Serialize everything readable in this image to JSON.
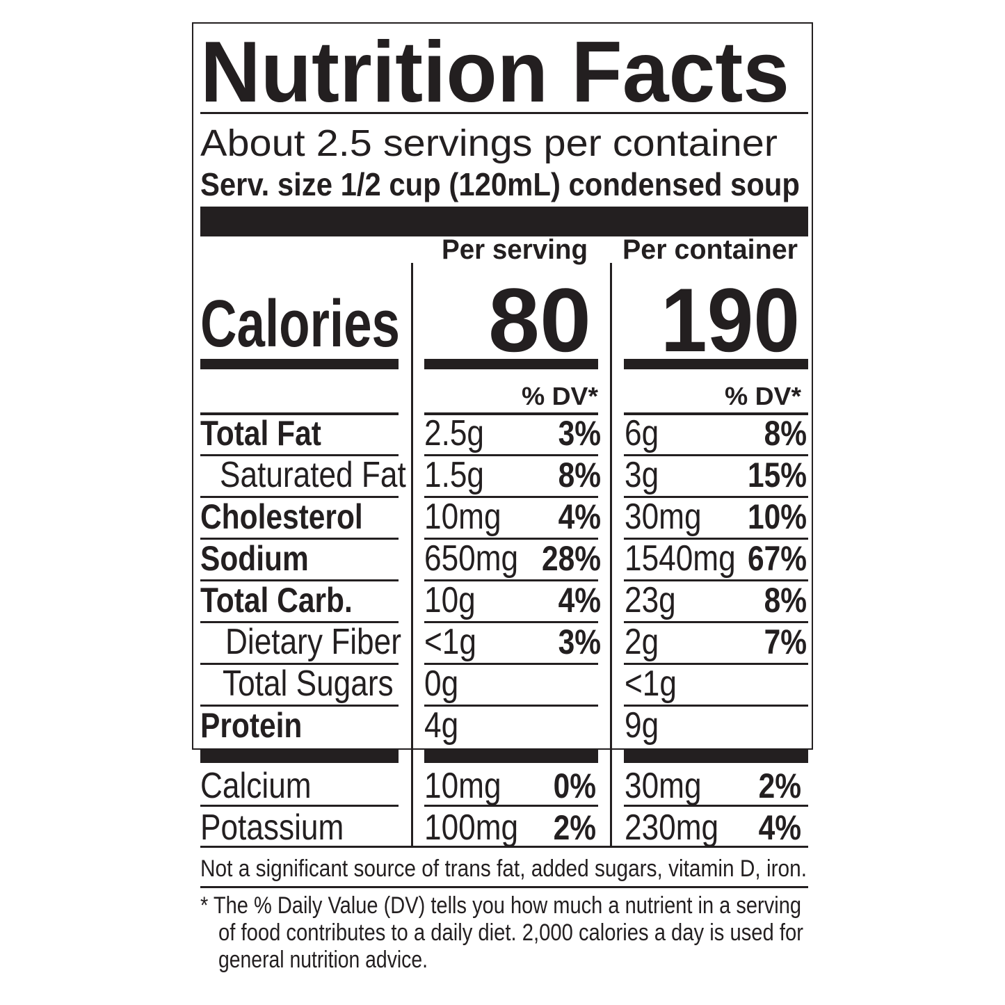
{
  "title": "Nutrition Facts",
  "servings_per_container": "About 2.5 servings per container",
  "serving_size": "Serv. size 1/2 cup (120mL) condensed soup",
  "columns": {
    "per_serving": "Per serving",
    "per_container": "Per container",
    "dv_header": "% DV*"
  },
  "calories": {
    "label": "Calories",
    "per_serving": "80",
    "per_container": "190"
  },
  "nutrients": [
    {
      "label": "Total Fat",
      "bold": true,
      "serving_amount": "2.5g",
      "serving_dv": "3%",
      "container_amount": "6g",
      "container_dv": "8%"
    },
    {
      "label": "Saturated Fat",
      "bold": false,
      "serving_amount": "1.5g",
      "serving_dv": "8%",
      "container_amount": "3g",
      "container_dv": "15%"
    },
    {
      "label": "Cholesterol",
      "bold": true,
      "serving_amount": "10mg",
      "serving_dv": "4%",
      "container_amount": "30mg",
      "container_dv": "10%"
    },
    {
      "label": "Sodium",
      "bold": true,
      "serving_amount": "650mg",
      "serving_dv": "28%",
      "container_amount": "1540mg",
      "container_dv": "67%"
    },
    {
      "label": "Total Carb.",
      "bold": true,
      "serving_amount": "10g",
      "serving_dv": "4%",
      "container_amount": "23g",
      "container_dv": "8%"
    },
    {
      "label": "Dietary Fiber",
      "bold": false,
      "serving_amount": "<1g",
      "serving_dv": "3%",
      "container_amount": "2g",
      "container_dv": "7%"
    },
    {
      "label": "Total Sugars",
      "bold": false,
      "serving_amount": "0g",
      "serving_dv": "",
      "container_amount": "<1g",
      "container_dv": ""
    },
    {
      "label": "Protein",
      "bold": true,
      "serving_amount": "4g",
      "serving_dv": "",
      "container_amount": "9g",
      "container_dv": ""
    }
  ],
  "minerals": [
    {
      "label": "Calcium",
      "serving_amount": "10mg",
      "serving_dv": "0%",
      "container_amount": "30mg",
      "container_dv": "2%"
    },
    {
      "label": "Potassium",
      "serving_amount": "100mg",
      "serving_dv": "2%",
      "container_amount": "230mg",
      "container_dv": "4%"
    }
  ],
  "not_significant": "Not a significant source of trans fat, added sugars, vitamin D, iron.",
  "footnote_lines": [
    "* The % Daily Value (DV) tells you how much a nutrient in a serving",
    "of food contributes to a daily diet. 2,000 calories a day is used for",
    "general nutrition advice."
  ]
}
